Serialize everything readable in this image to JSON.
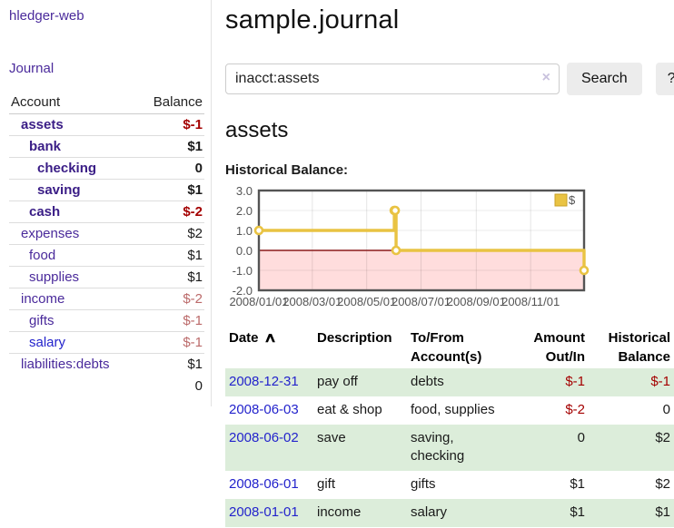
{
  "app": {
    "brand": "hledger-web",
    "nav_journal": "Journal"
  },
  "colors": {
    "accent_purple": "#4a2a9b",
    "link_blue": "#2323cc",
    "negative_strong": "#a40000",
    "negative_muted": "#bb6a6a",
    "row_green": "#dcedda",
    "series_gold": "#e9c343",
    "negative_region_pink": "#ffdddd",
    "zero_line_red": "#8b1c1c"
  },
  "sidebar": {
    "header": {
      "account": "Account",
      "balance": "Balance"
    },
    "accounts": [
      {
        "name": "assets",
        "depth": 1,
        "balance": "$-1",
        "emph": true,
        "link_color": "purple",
        "balance_neg": "strong"
      },
      {
        "name": "bank",
        "depth": 2,
        "balance": "$1",
        "emph": true,
        "link_color": "purple"
      },
      {
        "name": "checking",
        "depth": 3,
        "balance": "0",
        "emph": true,
        "link_color": "purple"
      },
      {
        "name": "saving",
        "depth": 3,
        "balance": "$1",
        "emph": true,
        "link_color": "purple"
      },
      {
        "name": "cash",
        "depth": 2,
        "balance": "$-2",
        "emph": true,
        "link_color": "purple",
        "balance_neg": "strong"
      },
      {
        "name": "expenses",
        "depth": 1,
        "balance": "$2",
        "emph": false,
        "link_color": "purple"
      },
      {
        "name": "food",
        "depth": 2,
        "balance": "$1",
        "emph": false,
        "link_color": "purple"
      },
      {
        "name": "supplies",
        "depth": 2,
        "balance": "$1",
        "emph": false,
        "link_color": "purple"
      },
      {
        "name": "income",
        "depth": 1,
        "balance": "$-2",
        "emph": false,
        "link_color": "purple",
        "balance_neg": "muted"
      },
      {
        "name": "gifts",
        "depth": 2,
        "balance": "$-1",
        "emph": false,
        "link_color": "purple",
        "balance_neg": "muted"
      },
      {
        "name": "salary",
        "depth": 2,
        "balance": "$-1",
        "emph": false,
        "link_color": "blue",
        "balance_neg": "muted"
      },
      {
        "name": "liabilities:debts",
        "depth": 1,
        "balance": "$1",
        "emph": false,
        "link_color": "purple"
      }
    ],
    "total": "0"
  },
  "header": {
    "title": "sample.journal"
  },
  "search": {
    "value": "inacct:assets",
    "clear_icon": "×",
    "button_label": "Search",
    "help_label": "?"
  },
  "account_page": {
    "heading": "assets",
    "chart_label": "Historical Balance:"
  },
  "chart_data": {
    "type": "line",
    "step": true,
    "title": "Historical Balance",
    "x_range": [
      "2008-01-01",
      "2008-12-31"
    ],
    "ylim": [
      -2,
      3
    ],
    "y_ticks": [
      3.0,
      2.0,
      1.0,
      0.0,
      -1.0,
      -2.0
    ],
    "x_ticks": [
      "2008/01/01",
      "2008/03/01",
      "2008/05/01",
      "2008/07/01",
      "2008/09/01",
      "2008/11/01"
    ],
    "grid": true,
    "legend": {
      "label": "$",
      "position": "top-right"
    },
    "negative_region_color": "#ffdddd",
    "zero_line_color": "#8b1c1c",
    "series": [
      {
        "name": "$",
        "color": "#e9c343",
        "points": [
          [
            "2008-01-01",
            1
          ],
          [
            "2008-06-01",
            2
          ],
          [
            "2008-06-02",
            2
          ],
          [
            "2008-06-03",
            0
          ],
          [
            "2008-12-31",
            -1
          ]
        ]
      }
    ]
  },
  "register": {
    "sort_icon": "∧",
    "columns": [
      {
        "line1": "Date",
        "line2": "",
        "align": "left",
        "sortable": true
      },
      {
        "line1": "Description",
        "line2": "",
        "align": "left"
      },
      {
        "line1": "To/From",
        "line2": "Account(s)",
        "align": "left"
      },
      {
        "line1": "Amount",
        "line2": "Out/In",
        "align": "right"
      },
      {
        "line1": "Historical",
        "line2": "Balance",
        "align": "right"
      }
    ],
    "rows": [
      {
        "date": "2008-12-31",
        "description": "pay off",
        "accounts": "debts",
        "amount": "$-1",
        "amount_neg": true,
        "balance": "$-1",
        "balance_neg": true
      },
      {
        "date": "2008-06-03",
        "description": "eat & shop",
        "accounts": "food, supplies",
        "amount": "$-2",
        "amount_neg": true,
        "balance": "0",
        "balance_neg": false
      },
      {
        "date": "2008-06-02",
        "description": "save",
        "accounts": "saving, checking",
        "amount": "0",
        "amount_neg": false,
        "balance": "$2",
        "balance_neg": false
      },
      {
        "date": "2008-06-01",
        "description": "gift",
        "accounts": "gifts",
        "amount": "$1",
        "amount_neg": false,
        "balance": "$2",
        "balance_neg": false
      },
      {
        "date": "2008-01-01",
        "description": "income",
        "accounts": "salary",
        "amount": "$1",
        "amount_neg": false,
        "balance": "$1",
        "balance_neg": false
      }
    ]
  }
}
